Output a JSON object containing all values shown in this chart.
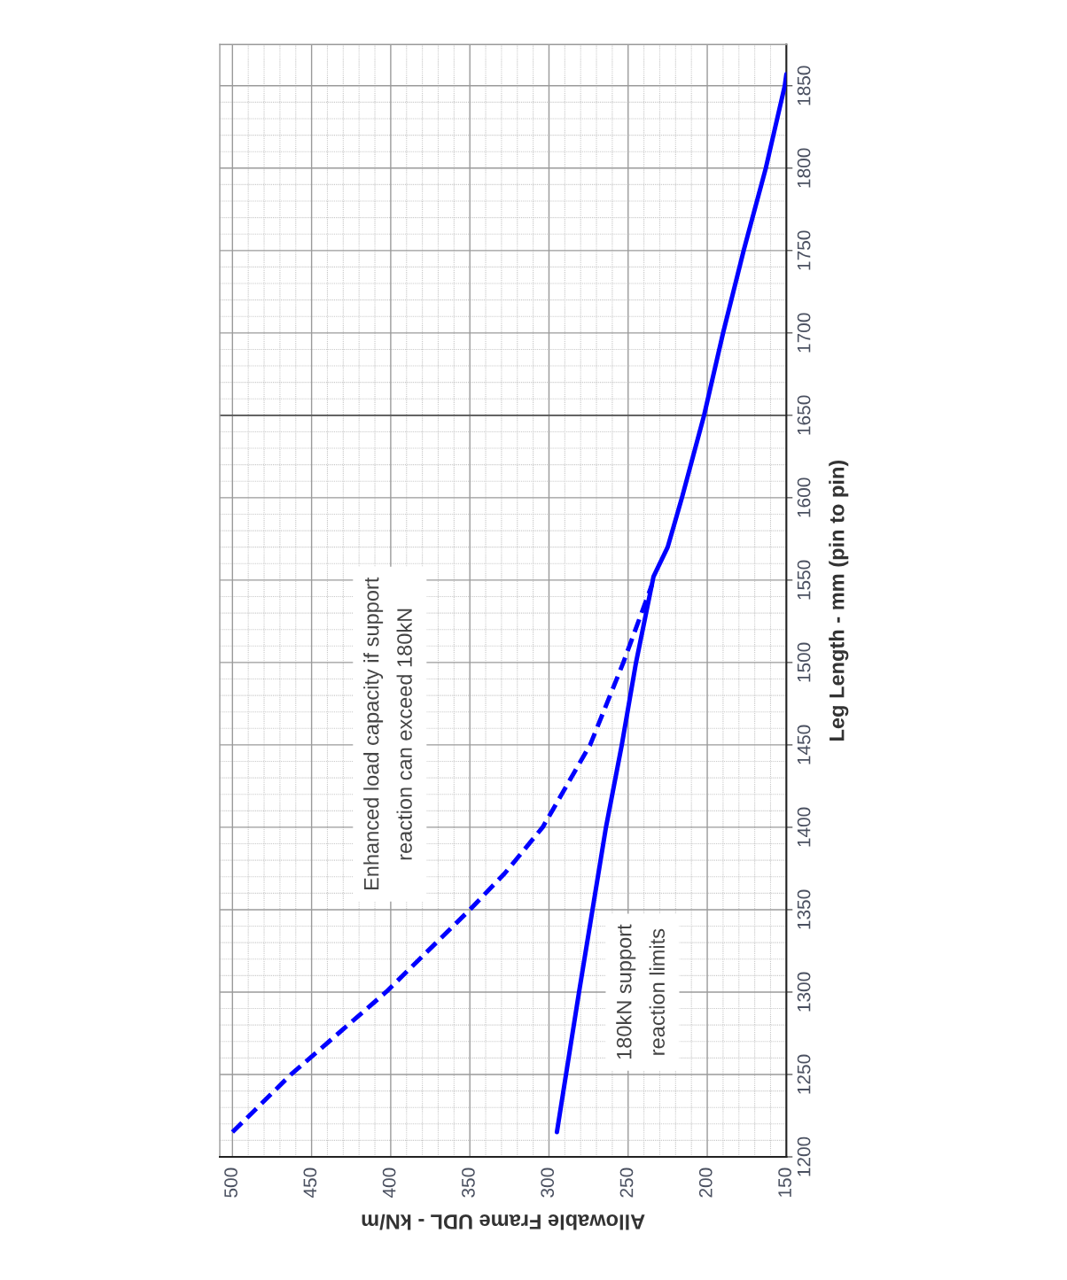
{
  "chart_data": {
    "type": "line",
    "xlabel": "Allowable Frame UDL - kN/m",
    "ylabel": "Leg Length - mm (pin to pin)",
    "xlim": [
      508,
      150
    ],
    "xticks": [
      500,
      450,
      400,
      350,
      300,
      250,
      200,
      150
    ],
    "ylim": [
      1200,
      1875
    ],
    "yticks": [
      1200,
      1250,
      1300,
      1350,
      1400,
      1450,
      1500,
      1550,
      1600,
      1650,
      1700,
      1750,
      1800,
      1850
    ],
    "grid": true,
    "marker": "none",
    "series": [
      {
        "color": "#0000ff",
        "line_style": "solid",
        "x": [
          295,
          281,
          264,
          254,
          245,
          234,
          225,
          216,
          202,
          190,
          177,
          163,
          151,
          150
        ],
        "values": [
          1215,
          1300,
          1400,
          1450,
          1500,
          1552,
          1570,
          1600,
          1650,
          1700,
          1750,
          1800,
          1850,
          1857
        ]
      },
      {
        "color": "#0000ff",
        "line_style": "dashed",
        "x": [
          500,
          463,
          403,
          350,
          328,
          304,
          274,
          253,
          235
        ],
        "values": [
          1215,
          1250,
          1300,
          1350,
          1372,
          1400,
          1450,
          1500,
          1547
        ]
      }
    ],
    "ref_lines": [
      {
        "axis": "y",
        "value": 1650,
        "color": "#555555"
      }
    ],
    "annotations": [
      "Enhanced load capacity if support\nreaction can exceed 180kN",
      "180kN support\nreaction limits"
    ]
  }
}
